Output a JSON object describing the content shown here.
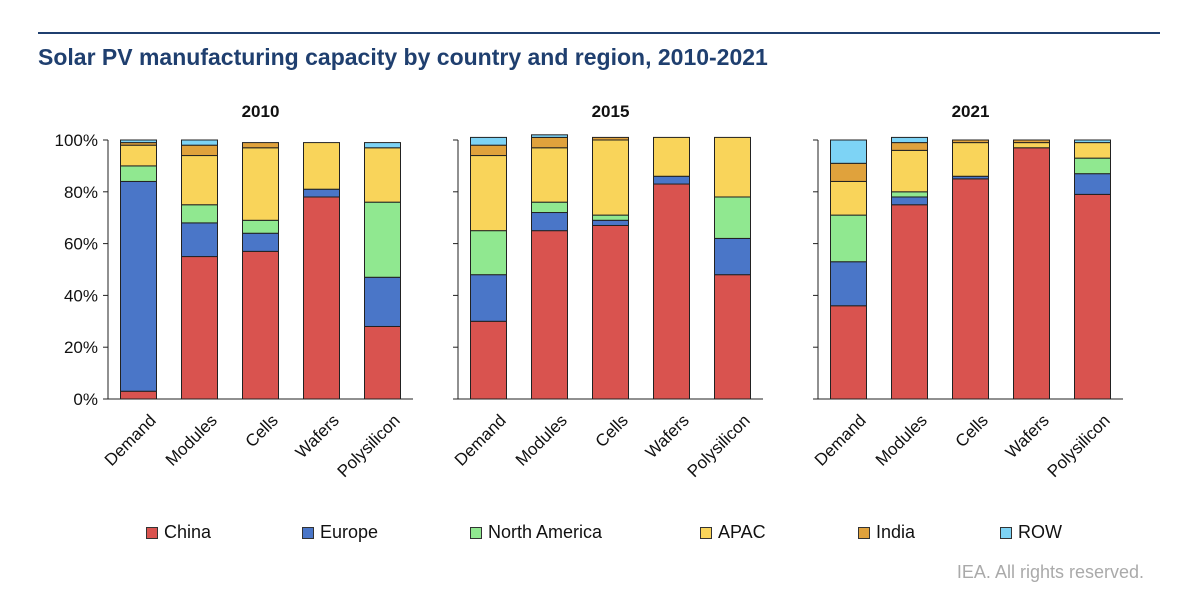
{
  "header": {
    "title": "Solar PV manufacturing capacity by country and region, 2010-2021"
  },
  "footer": {
    "source": "IEA. All rights reserved."
  },
  "chart_data": {
    "type": "bar",
    "stacked": true,
    "categories": [
      "Demand",
      "Modules",
      "Cells",
      "Wafers",
      "Polysilicon"
    ],
    "ylim": [
      0,
      100
    ],
    "yticks": [
      "0%",
      "20%",
      "40%",
      "60%",
      "80%",
      "100%"
    ],
    "grid": false,
    "legend_position": "bottom",
    "colors": {
      "China": "#d9534f",
      "Europe": "#4a76c8",
      "North America": "#90e890",
      "APAC": "#f9d45a",
      "India": "#e0a23c",
      "ROW": "#7dd3f5"
    },
    "series_names": [
      "China",
      "Europe",
      "North America",
      "APAC",
      "India",
      "ROW"
    ],
    "panels": [
      {
        "title": "2010",
        "series": [
          {
            "name": "China",
            "values": [
              3,
              55,
              57,
              78,
              28
            ]
          },
          {
            "name": "Europe",
            "values": [
              81,
              13,
              7,
              3,
              19
            ]
          },
          {
            "name": "North America",
            "values": [
              6,
              7,
              5,
              0,
              29
            ]
          },
          {
            "name": "APAC",
            "values": [
              8,
              19,
              28,
              18,
              21
            ]
          },
          {
            "name": "India",
            "values": [
              1,
              4,
              2,
              0,
              0
            ]
          },
          {
            "name": "ROW",
            "values": [
              1,
              2,
              0,
              0,
              2
            ]
          }
        ]
      },
      {
        "title": "2015",
        "series": [
          {
            "name": "China",
            "values": [
              30,
              65,
              67,
              83,
              48
            ]
          },
          {
            "name": "Europe",
            "values": [
              18,
              7,
              2,
              3,
              14
            ]
          },
          {
            "name": "North America",
            "values": [
              17,
              4,
              2,
              0,
              16
            ]
          },
          {
            "name": "APAC",
            "values": [
              29,
              21,
              29,
              15,
              23
            ]
          },
          {
            "name": "India",
            "values": [
              4,
              4,
              1,
              0,
              0
            ]
          },
          {
            "name": "ROW",
            "values": [
              3,
              1,
              0,
              0,
              0
            ]
          }
        ]
      },
      {
        "title": "2021",
        "series": [
          {
            "name": "China",
            "values": [
              36,
              75,
              85,
              97,
              79
            ]
          },
          {
            "name": "Europe",
            "values": [
              17,
              3,
              1,
              0,
              8
            ]
          },
          {
            "name": "North America",
            "values": [
              18,
              2,
              0,
              0,
              6
            ]
          },
          {
            "name": "APAC",
            "values": [
              13,
              16,
              13,
              2,
              6
            ]
          },
          {
            "name": "India",
            "values": [
              7,
              3,
              1,
              1,
              0
            ]
          },
          {
            "name": "ROW",
            "values": [
              9,
              2,
              0,
              0,
              1
            ]
          }
        ]
      }
    ]
  }
}
